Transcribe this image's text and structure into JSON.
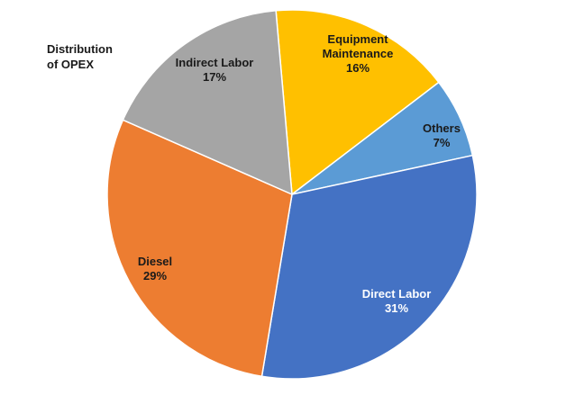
{
  "chart_data": {
    "type": "pie",
    "title_lines": [
      "Distribution",
      "of OPEX"
    ],
    "start_angle_deg": -5,
    "direction": "clockwise",
    "slices": [
      {
        "label_lines": [
          "Equipment",
          "Maintenance"
        ],
        "value": 16,
        "value_label": "16%",
        "color": "#FFC000",
        "label_color": "#1a1a1a"
      },
      {
        "label_lines": [
          "Others"
        ],
        "value": 7,
        "value_label": "7%",
        "color": "#5B9BD5",
        "label_color": "#1a1a1a"
      },
      {
        "label_lines": [
          "Direct Labor"
        ],
        "value": 31,
        "value_label": "31%",
        "color": "#4472C4",
        "label_color": "#ffffff"
      },
      {
        "label_lines": [
          "Diesel"
        ],
        "value": 29,
        "value_label": "29%",
        "color": "#ED7D31",
        "label_color": "#1a1a1a"
      },
      {
        "label_lines": [
          "Indirect Labor"
        ],
        "value": 17,
        "value_label": "17%",
        "color": "#A5A5A5",
        "label_color": "#1a1a1a"
      }
    ]
  }
}
